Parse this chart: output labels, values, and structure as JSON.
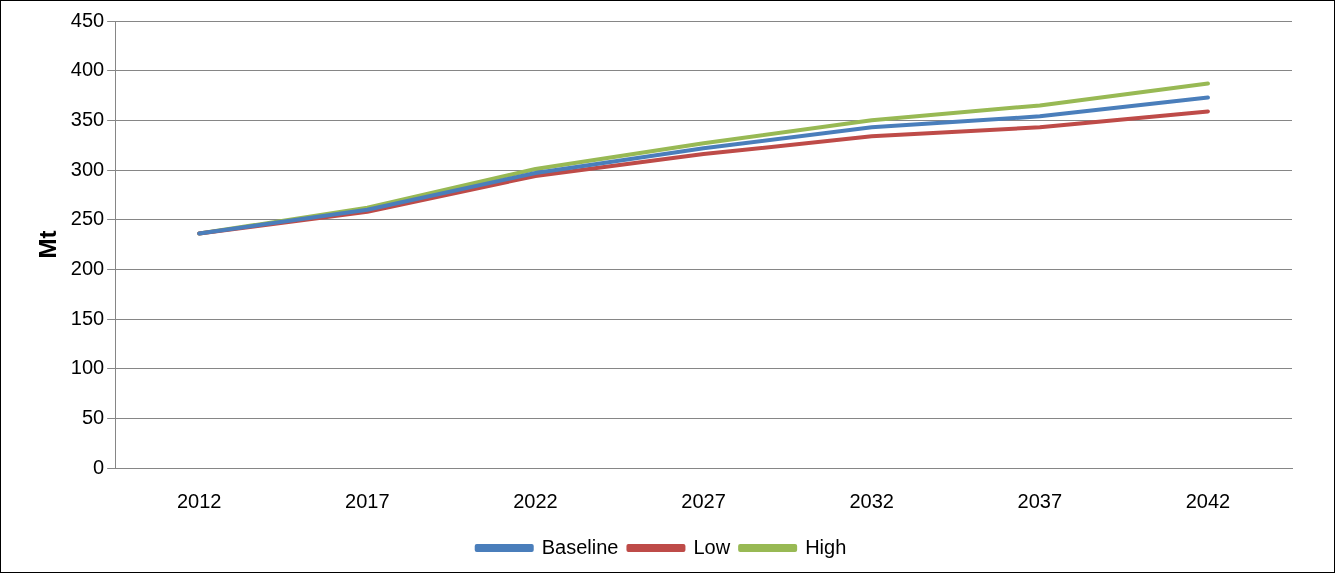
{
  "chart_data": {
    "type": "line",
    "ylabel": "Mt",
    "categories": [
      "2012",
      "2017",
      "2022",
      "2027",
      "2032",
      "2037",
      "2042"
    ],
    "series": [
      {
        "name": "Baseline",
        "color": "#4a7ebb",
        "values": [
          236,
          260,
          297,
          322,
          343,
          354,
          373
        ]
      },
      {
        "name": "Low",
        "color": "#be4b48",
        "values": [
          236,
          258,
          294,
          316,
          334,
          343,
          359
        ]
      },
      {
        "name": "High",
        "color": "#98b954",
        "values": [
          236,
          262,
          301,
          327,
          350,
          365,
          387
        ]
      }
    ],
    "ylim": [
      0,
      450
    ],
    "yticks": [
      0,
      50,
      100,
      150,
      200,
      250,
      300,
      350,
      400,
      450
    ],
    "grid": "y",
    "legend": "bottom",
    "marker": "none",
    "line_style": "solid"
  }
}
